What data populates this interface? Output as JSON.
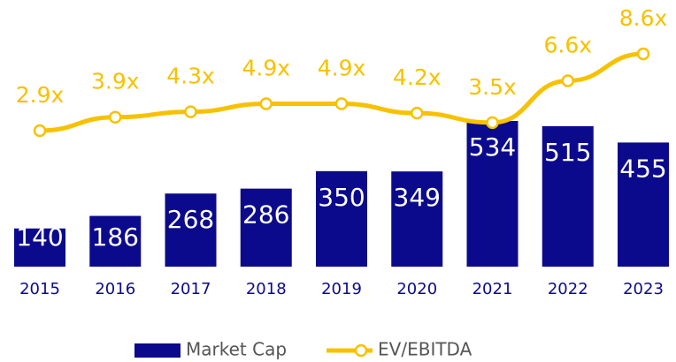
{
  "chart_data": {
    "type": "combo",
    "categories": [
      "2015",
      "2016",
      "2017",
      "2018",
      "2019",
      "2020",
      "2021",
      "2022",
      "2023"
    ],
    "series": [
      {
        "name": "Market Cap",
        "type": "bar",
        "color": "#0c0a8c",
        "values": [
          140,
          186,
          268,
          286,
          350,
          349,
          534,
          515,
          455
        ]
      },
      {
        "name": "EV/EBITDA",
        "type": "line",
        "color": "#f8c100",
        "values": [
          2.9,
          3.9,
          4.3,
          4.9,
          4.9,
          4.2,
          3.5,
          6.6,
          8.6
        ],
        "value_labels": [
          "2.9x",
          "3.9x",
          "4.3x",
          "4.9x",
          "4.9x",
          "4.2x",
          "3.5x",
          "6.6x",
          "8.6x"
        ]
      }
    ],
    "legend": "bottom"
  }
}
